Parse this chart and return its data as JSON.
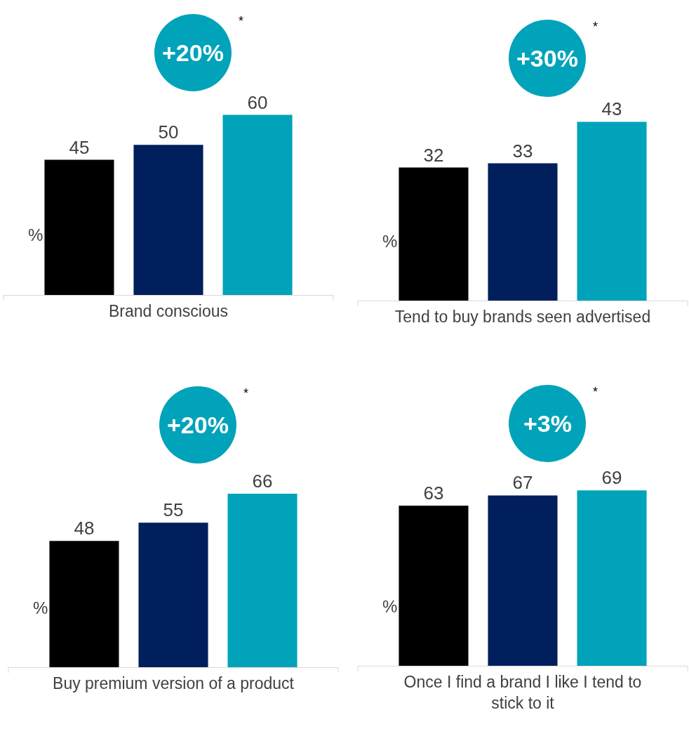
{
  "chart_data": [
    {
      "type": "bar",
      "categories": [
        null,
        null,
        null
      ],
      "values": [
        45,
        50,
        60
      ],
      "colors": [
        "#000000",
        "#001f5c",
        "#00a3b9"
      ],
      "ylabel": "%",
      "xlabel": "Brand conscious",
      "annotations": [
        "+20%",
        "*"
      ],
      "data_labels": true,
      "tick_labels": false
    },
    {
      "type": "bar",
      "categories": [
        null,
        null,
        null
      ],
      "values": [
        32,
        33,
        43
      ],
      "colors": [
        "#000000",
        "#001f5c",
        "#00a3b9"
      ],
      "ylabel": "%",
      "xlabel": "Tend to buy brands seen advertised",
      "annotations": [
        "+30%",
        "*"
      ],
      "data_labels": true,
      "tick_labels": false
    },
    {
      "type": "bar",
      "categories": [
        null,
        null,
        null
      ],
      "values": [
        48,
        55,
        66
      ],
      "colors": [
        "#000000",
        "#001f5c",
        "#00a3b9"
      ],
      "ylabel": "%",
      "xlabel": "Buy premium version of a product",
      "annotations": [
        "+20%",
        "*"
      ],
      "data_labels": true,
      "tick_labels": false
    },
    {
      "type": "bar",
      "categories": [
        null,
        null,
        null
      ],
      "values": [
        63,
        67,
        69
      ],
      "colors": [
        "#000000",
        "#001f5c",
        "#00a3b9"
      ],
      "ylabel": "%",
      "xlabel": "Once I find a brand I like I tend to stick to it",
      "annotations": [
        "+3%",
        "*"
      ],
      "data_labels": true,
      "tick_labels": false
    }
  ]
}
